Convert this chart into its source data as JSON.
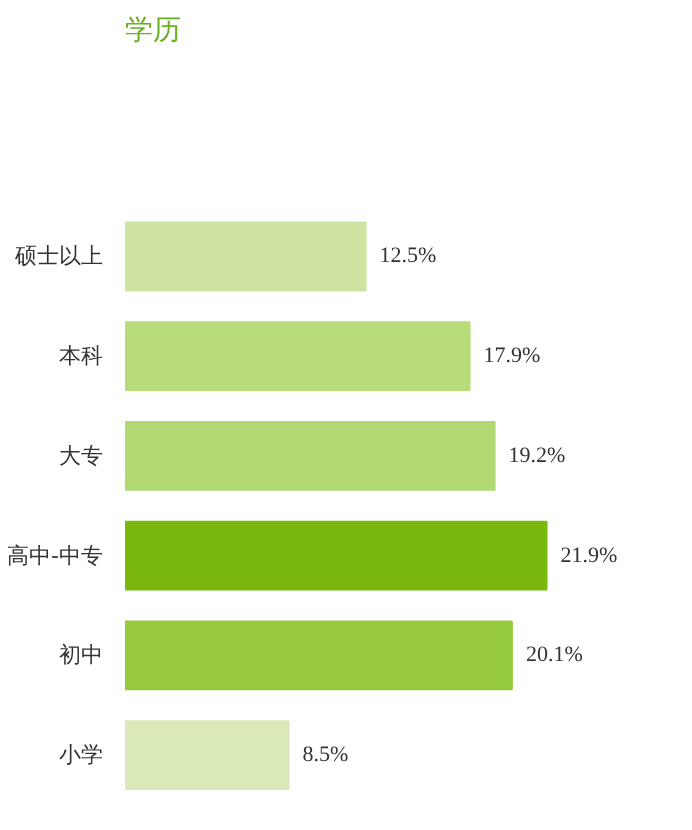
{
  "chart_data": {
    "type": "bar",
    "orientation": "horizontal",
    "title": "学历",
    "categories": [
      "硕士以上",
      "本科",
      "大专",
      "高中-中专",
      "初中",
      "小学"
    ],
    "values": [
      12.5,
      17.9,
      19.2,
      21.9,
      20.1,
      8.5
    ],
    "value_labels": [
      "12.5%",
      "17.9%",
      "19.2%",
      "21.9%",
      "20.1%",
      "8.5%"
    ],
    "colors": [
      "#cfe4a0",
      "#b8dc7a",
      "#b1d873",
      "#7ab80e",
      "#96c93d",
      "#d9eab8"
    ],
    "grid": false
  }
}
